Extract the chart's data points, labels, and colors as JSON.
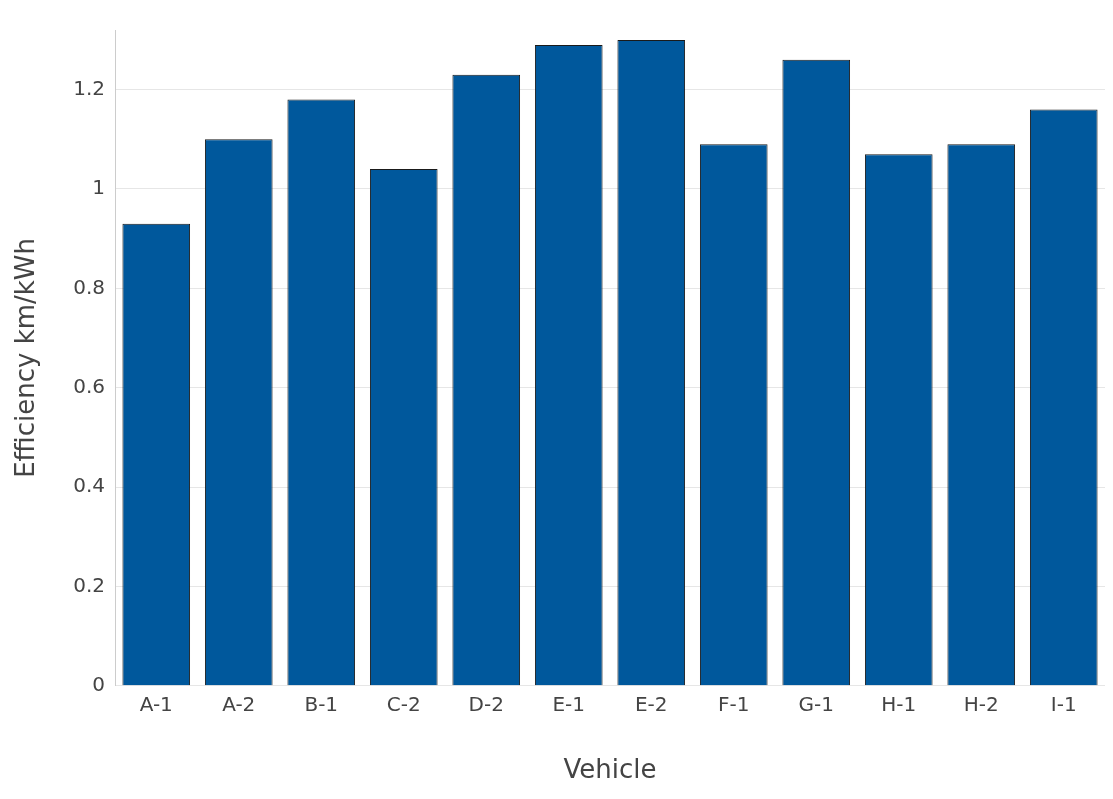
{
  "chart_data": {
    "type": "bar",
    "xlabel": "Vehicle",
    "ylabel": "Efficiency km/kWh",
    "categories": [
      "A-1",
      "A-2",
      "B-1",
      "C-2",
      "D-2",
      "E-1",
      "E-2",
      "F-1",
      "G-1",
      "H-1",
      "H-2",
      "I-1"
    ],
    "values": [
      0.93,
      1.1,
      1.18,
      1.04,
      1.23,
      1.29,
      1.3,
      1.09,
      1.26,
      1.07,
      1.09,
      1.16
    ],
    "color": "#00589c",
    "ylim": [
      0,
      1.32
    ],
    "yticks": [
      0,
      0.2,
      0.4,
      0.6,
      0.8,
      1,
      1.2
    ],
    "grid": "y",
    "legend": false
  }
}
